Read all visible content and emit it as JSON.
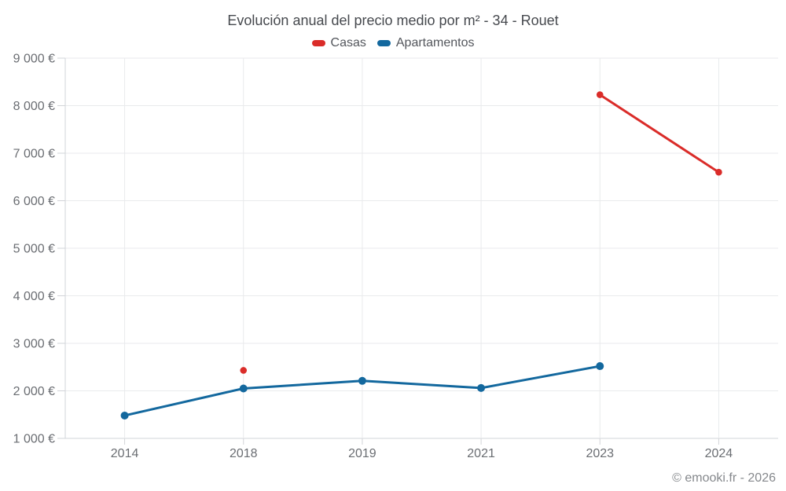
{
  "title": "Evolución anual del precio medio por m² - 34 - Rouet",
  "legend": {
    "items": [
      {
        "label": "Casas",
        "color": "#da2c29"
      },
      {
        "label": "Apartamentos",
        "color": "#13689e"
      }
    ]
  },
  "footer": {
    "credit": "© emooki.fr - 2026"
  },
  "chart_data": {
    "type": "line",
    "title": "Evolución anual del precio medio por m² - 34 - Rouet",
    "categories": [
      "2014",
      "2018",
      "2019",
      "2021",
      "2023",
      "2024"
    ],
    "series": [
      {
        "name": "Casas",
        "color": "#da2c29",
        "marker_radius": 4.3,
        "values": [
          null,
          2430,
          null,
          null,
          8230,
          6600
        ]
      },
      {
        "name": "Apartamentos",
        "color": "#13689e",
        "marker_radius": 5,
        "values": [
          1480,
          2050,
          2210,
          2060,
          2520,
          null
        ]
      }
    ],
    "xlabel": "",
    "ylabel": "",
    "ylim": [
      1000,
      9000
    ],
    "ytick_step": 1000,
    "ytick_labels": [
      "1 000 €",
      "2 000 €",
      "3 000 €",
      "4 000 €",
      "5 000 €",
      "6 000 €",
      "7 000 €",
      "8 000 €",
      "9 000 €"
    ],
    "grid": true,
    "legend_position": "top"
  },
  "colors": {
    "background": "#ffffff",
    "axis": "#d2d4d8",
    "grid": "#e9eaec",
    "tick_text": "#6a6d72",
    "title_text": "#46494e",
    "legend_text": "#53565c",
    "footer_text": "#85888c"
  }
}
